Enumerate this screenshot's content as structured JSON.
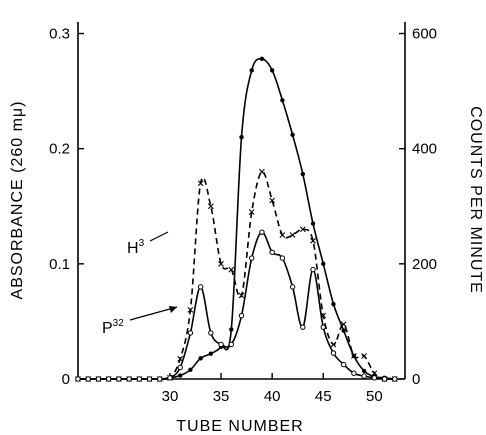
{
  "chart_data": {
    "type": "line",
    "xlabel": "TUBE NUMBER",
    "ylabel": "ABSORBANCE (260 mμ)",
    "ylabel_right": "COUNTS PER MINUTE",
    "xlim": [
      21,
      53
    ],
    "ylim": [
      0,
      0.31
    ],
    "ylim_right": [
      0,
      620
    ],
    "x_ticks": [
      30,
      35,
      40,
      45,
      50
    ],
    "y_ticks": [
      0,
      0.1,
      0.2,
      0.3
    ],
    "y_tick_labels": [
      "0",
      "0.1",
      "0.2",
      "0.3"
    ],
    "y_ticks_right": [
      0,
      200,
      400,
      600
    ],
    "y_tick_labels_right": [
      "0",
      "200",
      "400",
      "600"
    ],
    "grid": false,
    "series": [
      {
        "axis": "left",
        "style": "solid",
        "marker": "filled-dot",
        "x": [
          21,
          22,
          23,
          24,
          25,
          26,
          27,
          28,
          29,
          30,
          31,
          32,
          33,
          34,
          35,
          36,
          37,
          38,
          39,
          40,
          41,
          42,
          43,
          44,
          45,
          46,
          47,
          48,
          49,
          50,
          51,
          52
        ],
        "y": [
          0,
          0,
          0,
          0,
          0,
          0,
          0,
          0,
          0,
          0.001,
          0.003,
          0.008,
          0.018,
          0.022,
          0.028,
          0.043,
          0.21,
          0.268,
          0.278,
          0.268,
          0.242,
          0.212,
          0.178,
          0.135,
          0.1,
          0.065,
          0.042,
          0.02,
          0.007,
          0.002,
          0.001,
          0
        ]
      },
      {
        "name": "H³",
        "axis": "right",
        "style": "dashed",
        "marker": "x",
        "x": [
          21,
          22,
          23,
          24,
          25,
          26,
          27,
          28,
          29,
          30,
          31,
          32,
          33,
          34,
          35,
          36,
          37,
          38,
          39,
          40,
          41,
          42,
          43,
          44,
          45,
          46,
          47,
          48,
          49,
          50,
          51,
          52
        ],
        "y": [
          0,
          0,
          0,
          0,
          0,
          0,
          0,
          0,
          0,
          2,
          35,
          120,
          340,
          300,
          200,
          190,
          145,
          290,
          360,
          310,
          250,
          250,
          260,
          240,
          110,
          60,
          95,
          40,
          40,
          10,
          0,
          0
        ]
      },
      {
        "name": "P³²",
        "axis": "right",
        "style": "solid",
        "marker": "open-circle",
        "x": [
          21,
          22,
          23,
          24,
          25,
          26,
          27,
          28,
          29,
          30,
          31,
          32,
          33,
          34,
          35,
          36,
          37,
          38,
          39,
          40,
          41,
          42,
          43,
          44,
          45,
          46,
          47,
          48,
          49,
          50,
          51,
          52
        ],
        "y": [
          0,
          0,
          0,
          0,
          0,
          0,
          0,
          0,
          0,
          2,
          20,
          80,
          160,
          80,
          60,
          60,
          110,
          210,
          255,
          220,
          210,
          160,
          90,
          190,
          90,
          45,
          25,
          10,
          5,
          2,
          0,
          0
        ]
      }
    ]
  }
}
